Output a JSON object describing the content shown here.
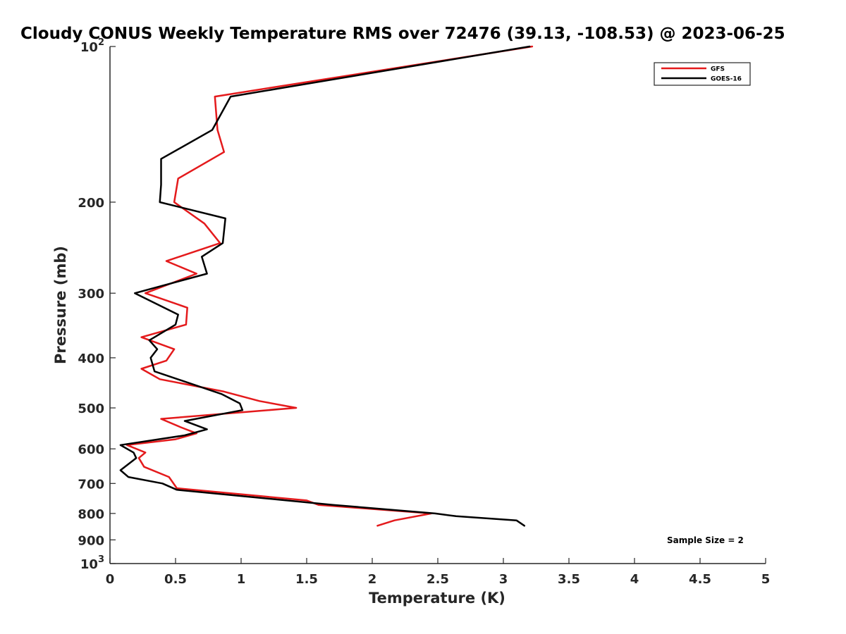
{
  "chart_data": {
    "type": "line",
    "title": "Cloudy CONUS Weekly Temperature RMS over 72476 (39.13, -108.53) @ 2023-06-25",
    "xlabel": "Temperature (K)",
    "ylabel": "Pressure (mb)",
    "xlim": [
      0,
      5
    ],
    "ylim": [
      100,
      1000
    ],
    "y_scale": "log",
    "y_reversed": true,
    "x_ticks": [
      0,
      0.5,
      1,
      1.5,
      2,
      2.5,
      3,
      3.5,
      4,
      4.5,
      5
    ],
    "x_tick_labels": [
      "0",
      "0.5",
      "1",
      "1.5",
      "2",
      "2.5",
      "3",
      "3.5",
      "4",
      "4.5",
      "5"
    ],
    "y_ticks": [
      100,
      200,
      300,
      400,
      500,
      600,
      700,
      800,
      900,
      1000
    ],
    "y_tick_labels": [
      {
        "base": "10",
        "exp": "2"
      },
      {
        "base": "200",
        "exp": ""
      },
      {
        "base": "300",
        "exp": ""
      },
      {
        "base": "400",
        "exp": ""
      },
      {
        "base": "500",
        "exp": ""
      },
      {
        "base": "600",
        "exp": ""
      },
      {
        "base": "700",
        "exp": ""
      },
      {
        "base": "800",
        "exp": ""
      },
      {
        "base": "900",
        "exp": ""
      },
      {
        "base": "10",
        "exp": "3"
      }
    ],
    "grid": false,
    "legend_position": "top-right",
    "annotation": "Sample Size = 2",
    "series": [
      {
        "name": "GFS",
        "color": "#e41a1c",
        "points": [
          [
            3.22,
            100
          ],
          [
            0.8,
            125
          ],
          [
            0.82,
            145
          ],
          [
            0.87,
            160
          ],
          [
            0.52,
            180
          ],
          [
            0.49,
            200
          ],
          [
            0.72,
            220
          ],
          [
            0.84,
            240
          ],
          [
            0.43,
            260
          ],
          [
            0.66,
            275
          ],
          [
            0.27,
            300
          ],
          [
            0.59,
            320
          ],
          [
            0.58,
            345
          ],
          [
            0.24,
            365
          ],
          [
            0.49,
            385
          ],
          [
            0.43,
            405
          ],
          [
            0.24,
            420
          ],
          [
            0.38,
            440
          ],
          [
            0.87,
            465
          ],
          [
            1.14,
            485
          ],
          [
            1.42,
            500
          ],
          [
            0.39,
            525
          ],
          [
            0.54,
            545
          ],
          [
            0.66,
            560
          ],
          [
            0.5,
            575
          ],
          [
            0.13,
            590
          ],
          [
            0.27,
            610
          ],
          [
            0.22,
            625
          ],
          [
            0.26,
            650
          ],
          [
            0.45,
            680
          ],
          [
            0.51,
            715
          ],
          [
            1.5,
            755
          ],
          [
            1.59,
            770
          ],
          [
            2.45,
            800
          ],
          [
            2.17,
            825
          ],
          [
            2.04,
            845
          ]
        ]
      },
      {
        "name": "GOES-16",
        "color": "#000000",
        "points": [
          [
            3.2,
            100
          ],
          [
            0.92,
            125
          ],
          [
            0.78,
            145
          ],
          [
            0.39,
            165
          ],
          [
            0.39,
            185
          ],
          [
            0.38,
            200
          ],
          [
            0.88,
            215
          ],
          [
            0.86,
            240
          ],
          [
            0.7,
            255
          ],
          [
            0.74,
            275
          ],
          [
            0.19,
            300
          ],
          [
            0.52,
            330
          ],
          [
            0.5,
            345
          ],
          [
            0.3,
            370
          ],
          [
            0.36,
            385
          ],
          [
            0.31,
            400
          ],
          [
            0.34,
            425
          ],
          [
            0.85,
            470
          ],
          [
            0.99,
            490
          ],
          [
            1.01,
            505
          ],
          [
            0.57,
            530
          ],
          [
            0.74,
            550
          ],
          [
            0.57,
            565
          ],
          [
            0.08,
            590
          ],
          [
            0.18,
            610
          ],
          [
            0.2,
            625
          ],
          [
            0.08,
            660
          ],
          [
            0.14,
            680
          ],
          [
            0.4,
            700
          ],
          [
            0.51,
            720
          ],
          [
            1.7,
            770
          ],
          [
            2.48,
            800
          ],
          [
            2.64,
            810
          ],
          [
            3.1,
            825
          ],
          [
            3.16,
            845
          ]
        ]
      }
    ]
  }
}
